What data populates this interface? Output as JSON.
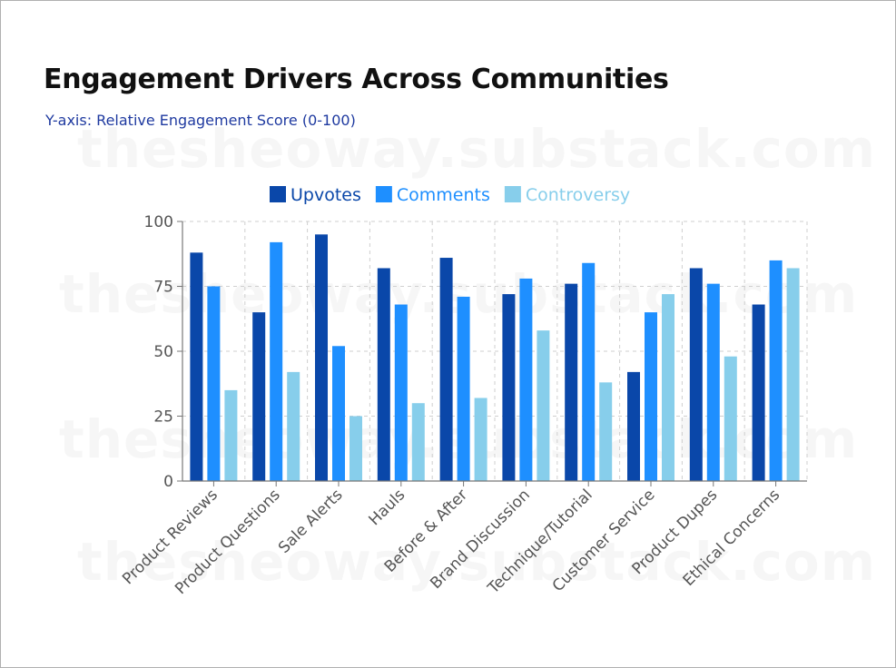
{
  "title": "Engagement Drivers Across Communities",
  "subtitle": "Y-axis: Relative Engagement Score (0-100)",
  "watermark": "thesheoway.substack.com",
  "chart_data": {
    "type": "bar",
    "categories": [
      "Product Reviews",
      "Product Questions",
      "Sale Alerts",
      "Hauls",
      "Before & After",
      "Brand Discussion",
      "Technique/Tutorial",
      "Customer Service",
      "Product Dupes",
      "Ethical Concerns"
    ],
    "series": [
      {
        "name": "Upvotes",
        "color": "#0a47a9",
        "values": [
          88,
          65,
          95,
          82,
          86,
          72,
          76,
          42,
          82,
          68
        ]
      },
      {
        "name": "Comments",
        "color": "#1e8fff",
        "values": [
          75,
          92,
          52,
          68,
          71,
          78,
          84,
          65,
          76,
          85
        ]
      },
      {
        "name": "Controversy",
        "color": "#87ceeb",
        "values": [
          35,
          42,
          25,
          30,
          32,
          58,
          38,
          72,
          48,
          82
        ]
      }
    ],
    "ylim": [
      0,
      100
    ],
    "yticks": [
      0,
      25,
      50,
      75,
      100
    ],
    "grid": true,
    "legend_position": "top"
  }
}
